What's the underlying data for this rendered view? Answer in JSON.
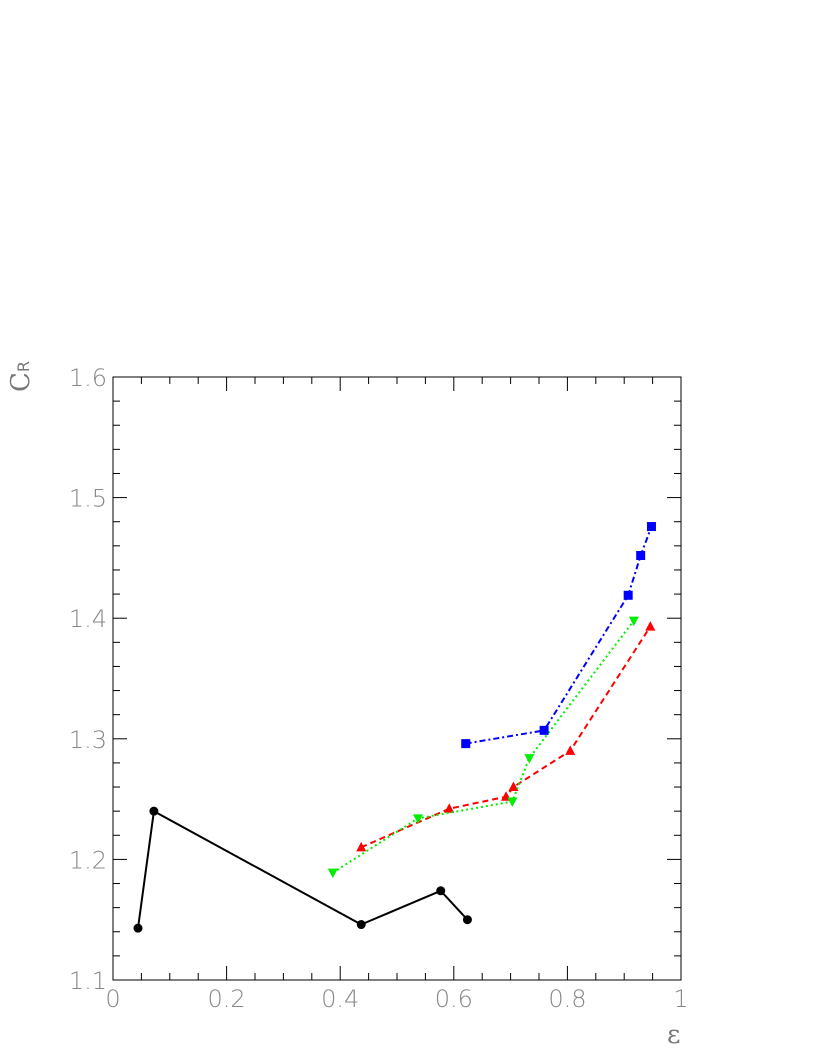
{
  "chart_data": {
    "type": "line",
    "title": "",
    "xlabel": "ε",
    "ylabel": {
      "base": "C",
      "subscript": "R"
    },
    "xlim": [
      0,
      1
    ],
    "ylim": [
      1.1,
      1.6
    ],
    "x_ticks": [
      0,
      0.2,
      0.4,
      0.6,
      0.8,
      1
    ],
    "x_tick_labels": [
      "0",
      "0.2",
      "0.4",
      "0.6",
      "0.8",
      "1"
    ],
    "y_ticks": [
      1.1,
      1.2,
      1.3,
      1.4,
      1.5,
      1.6
    ],
    "y_tick_labels": [
      "1.1",
      "1.2",
      "1.3",
      "1.4",
      "1.5",
      "1.6"
    ],
    "grid": false,
    "legend": "none",
    "series": [
      {
        "color": "#000000",
        "line_style": "solid",
        "marker": "circle",
        "x": [
          0.044,
          0.072,
          0.437,
          0.577,
          0.624
        ],
        "y": [
          1.143,
          1.24,
          1.146,
          1.174,
          1.15
        ]
      },
      {
        "color": "#ff0000",
        "line_style": "dashed",
        "marker": "triangle-up",
        "x": [
          0.437,
          0.592,
          0.692,
          0.705,
          0.805,
          0.946
        ],
        "y": [
          1.21,
          1.242,
          1.252,
          1.26,
          1.29,
          1.393
        ]
      },
      {
        "color": "#00ee00",
        "line_style": "dotted",
        "marker": "triangle-down",
        "x": [
          0.387,
          0.537,
          0.703,
          0.733,
          0.917
        ],
        "y": [
          1.189,
          1.234,
          1.248,
          1.284,
          1.398
        ]
      },
      {
        "color": "#0000ff",
        "line_style": "dash-dot",
        "marker": "square",
        "x": [
          0.621,
          0.759,
          0.907,
          0.929,
          0.948
        ],
        "y": [
          1.296,
          1.307,
          1.419,
          1.452,
          1.476
        ]
      }
    ]
  }
}
